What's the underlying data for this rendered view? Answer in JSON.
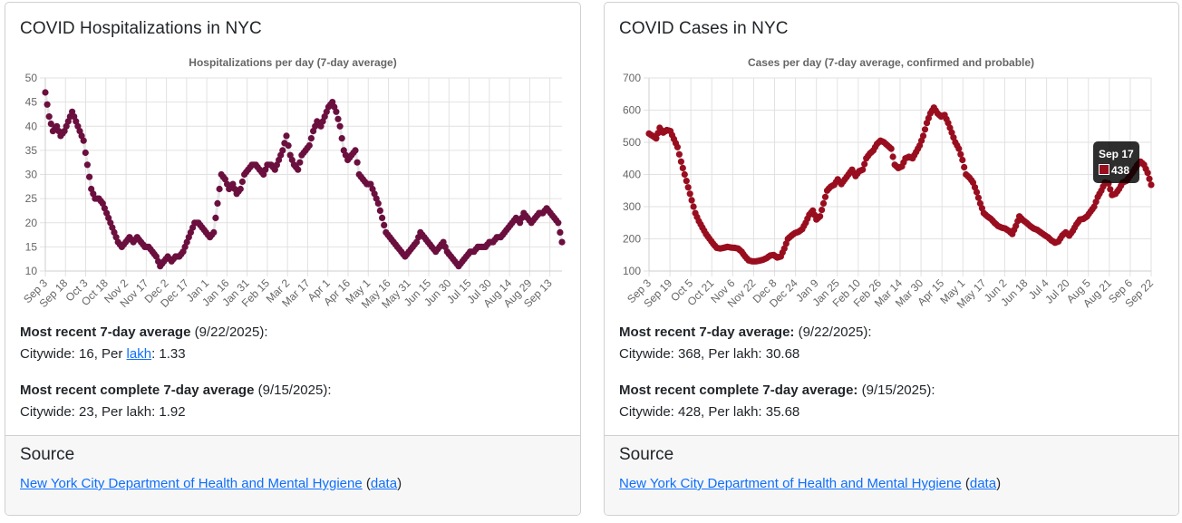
{
  "hosp": {
    "title": "COVID Hospitalizations in NYC",
    "recent_label": "Most recent 7-day average",
    "recent_date": "(9/22/2025):",
    "recent_citywide": "Citywide: 16, Per ",
    "recent_lakh_link": "lakh",
    "recent_per_lakh": ": 1.33",
    "complete_label": "Most recent complete 7-day average",
    "complete_date": "(9/15/2025):",
    "complete_values": "Citywide: 23, Per lakh: 1.92",
    "source_heading": "Source",
    "source_link": "New York City Department of Health and Mental Hygiene",
    "data_link": "data",
    "paren_open": "(",
    "paren_close": ")"
  },
  "cases": {
    "title": "COVID Cases in NYC",
    "recent_label": "Most recent 7-day average:",
    "recent_date": "(9/22/2025):",
    "recent_values": "Citywide: 368, Per lakh: 30.68",
    "complete_label": "Most recent complete 7-day average:",
    "complete_date": "(9/15/2025):",
    "complete_values": "Citywide: 428, Per lakh: 35.68",
    "source_heading": "Source",
    "source_link": "New York City Department of Health and Mental Hygiene",
    "data_link": "data",
    "paren_open": "(",
    "paren_close": ")",
    "tooltip": {
      "date": "Sep 17",
      "value": "438"
    }
  },
  "chart_data": [
    {
      "type": "scatter",
      "title": "Hospitalizations per day (7-day average)",
      "xlabel": "",
      "ylabel": "",
      "ylim": [
        10,
        50
      ],
      "yticks": [
        10,
        15,
        20,
        25,
        30,
        35,
        40,
        45,
        50
      ],
      "xticks": [
        "Sep 3",
        "Sep 18",
        "Oct 3",
        "Oct 18",
        "Nov 2",
        "Nov 17",
        "Dec 2",
        "Dec 17",
        "Jan 1",
        "Jan 16",
        "Jan 31",
        "Feb 15",
        "Mar 2",
        "Mar 17",
        "Apr 1",
        "Apr 16",
        "May 1",
        "May 16",
        "May 31",
        "Jun 15",
        "Jun 30",
        "Jul 15",
        "Jul 30",
        "Aug 14",
        "Aug 29",
        "Sep 13"
      ],
      "x_start": "Sep 3",
      "x_end": "Sep 22",
      "step_days": 3,
      "grid": true,
      "color": "#6b0f3f",
      "values": [
        47,
        42,
        39,
        40,
        38,
        39,
        41,
        43,
        41,
        39,
        37,
        32,
        27,
        25,
        25,
        24,
        22,
        20,
        18,
        16,
        15,
        16,
        17,
        16,
        17,
        16,
        15,
        15,
        14,
        13,
        11,
        12,
        13,
        12,
        13,
        13,
        14,
        16,
        18,
        20,
        20,
        19,
        18,
        17,
        18,
        24,
        30,
        29,
        27,
        28,
        26,
        27,
        30,
        31,
        32,
        32,
        31,
        30,
        32,
        32,
        31,
        33,
        35,
        38,
        34,
        32,
        31,
        34,
        35,
        36,
        39,
        41,
        40,
        42,
        44,
        45,
        43,
        40,
        35,
        33,
        34,
        35,
        30,
        29,
        28,
        28,
        26,
        24,
        21,
        18,
        17,
        16,
        15,
        14,
        13,
        14,
        15,
        16,
        18,
        17,
        16,
        15,
        14,
        15,
        16,
        14,
        13,
        12,
        11,
        12,
        13,
        14,
        14,
        15,
        15,
        15,
        16,
        16,
        17,
        17,
        18,
        19,
        20,
        21,
        20,
        22,
        21,
        20,
        21,
        22,
        22,
        23,
        22,
        21,
        20,
        16
      ]
    },
    {
      "type": "scatter",
      "title": "Cases per day (7-day average, confirmed and probable)",
      "xlabel": "",
      "ylabel": "",
      "ylim": [
        100,
        700
      ],
      "yticks": [
        100,
        200,
        300,
        400,
        500,
        600,
        700
      ],
      "xticks": [
        "Sep 3",
        "Sep 19",
        "Oct 5",
        "Oct 21",
        "Nov 6",
        "Nov 22",
        "Dec 8",
        "Dec 24",
        "Jan 9",
        "Jan 25",
        "Feb 10",
        "Feb 26",
        "Mar 14",
        "Mar 30",
        "Apr 15",
        "May 1",
        "May 17",
        "Jun 2",
        "Jun 18",
        "Jul 4",
        "Jul 20",
        "Aug 5",
        "Aug 21",
        "Sep 6",
        "Sep 22"
      ],
      "x_start": "Sep 3",
      "x_end": "Sep 22",
      "step_days": 3,
      "grid": true,
      "color": "#990e1f",
      "values": [
        527,
        520,
        512,
        545,
        530,
        538,
        535,
        510,
        485,
        440,
        400,
        360,
        320,
        280,
        255,
        235,
        215,
        200,
        185,
        172,
        170,
        172,
        175,
        173,
        172,
        170,
        160,
        145,
        133,
        130,
        130,
        132,
        135,
        140,
        148,
        150,
        142,
        145,
        170,
        200,
        210,
        218,
        222,
        230,
        250,
        275,
        288,
        260,
        270,
        310,
        350,
        362,
        368,
        385,
        370,
        385,
        400,
        415,
        395,
        410,
        415,
        450,
        465,
        475,
        495,
        505,
        500,
        490,
        480,
        430,
        420,
        425,
        450,
        455,
        450,
        470,
        490,
        520,
        560,
        590,
        608,
        590,
        580,
        585,
        560,
        530,
        500,
        480,
        445,
        400,
        390,
        375,
        345,
        310,
        280,
        270,
        262,
        250,
        240,
        235,
        232,
        225,
        215,
        240,
        270,
        258,
        250,
        240,
        232,
        228,
        220,
        212,
        205,
        195,
        188,
        192,
        210,
        220,
        210,
        225,
        245,
        260,
        262,
        270,
        285,
        300,
        330,
        350,
        375,
        372,
        336,
        340,
        355,
        375,
        380,
        395,
        410,
        428,
        440,
        430,
        405,
        368
      ]
    }
  ]
}
